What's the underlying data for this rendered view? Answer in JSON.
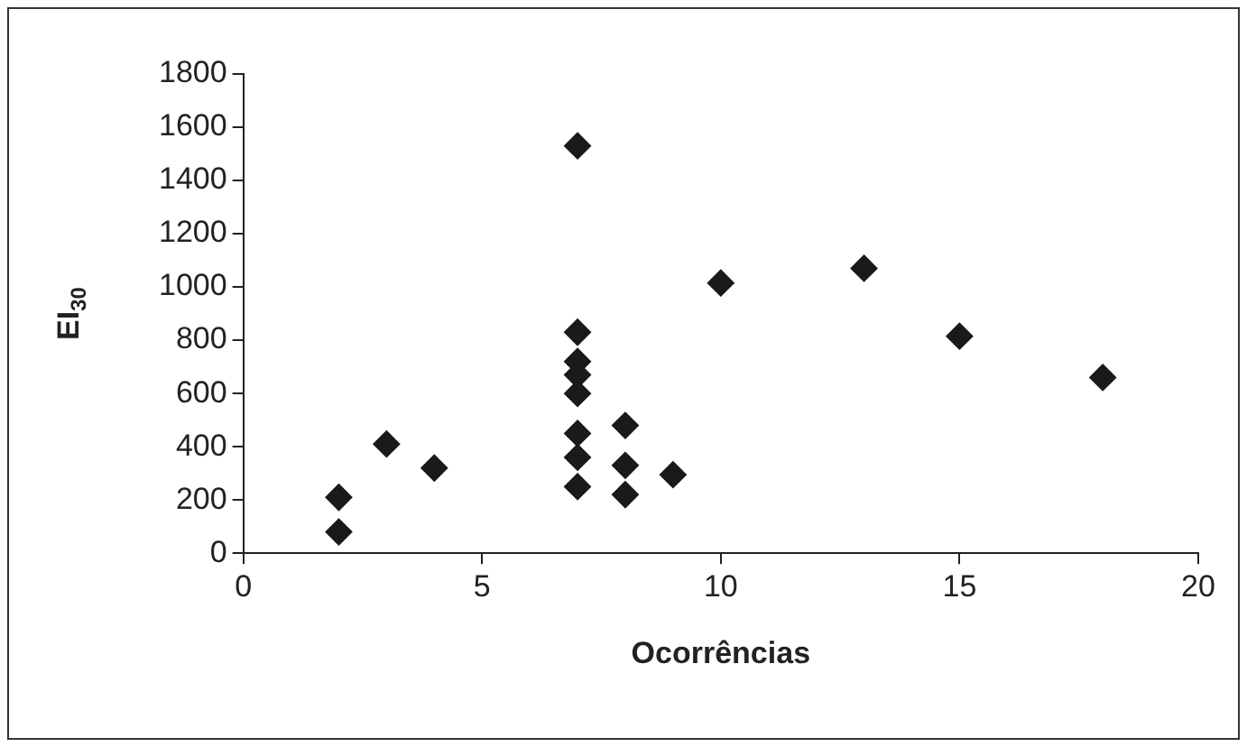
{
  "chart_data": {
    "type": "scatter",
    "xlabel": "Ocorrências",
    "ylabel": "EI$_{30}$",
    "x": [
      2,
      2,
      3,
      4,
      7,
      7,
      7,
      7,
      7,
      7,
      7,
      7,
      8,
      8,
      8,
      9,
      10,
      13,
      15,
      18
    ],
    "series": [
      {
        "color": "#1a1a1a",
        "values": [
          80,
          210,
          410,
          320,
          1530,
          830,
          720,
          670,
          600,
          450,
          360,
          250,
          480,
          330,
          220,
          295,
          1015,
          1070,
          815,
          660
        ]
      }
    ],
    "xlim": [
      0,
      20
    ],
    "xticks": [
      0,
      5,
      10,
      15,
      20
    ],
    "ylim": [
      0,
      1800
    ],
    "yticks": [
      0,
      200,
      400,
      600,
      800,
      1000,
      1200,
      1400,
      1600,
      1800
    ],
    "grid": false,
    "legend": false,
    "marker": "diamond"
  }
}
